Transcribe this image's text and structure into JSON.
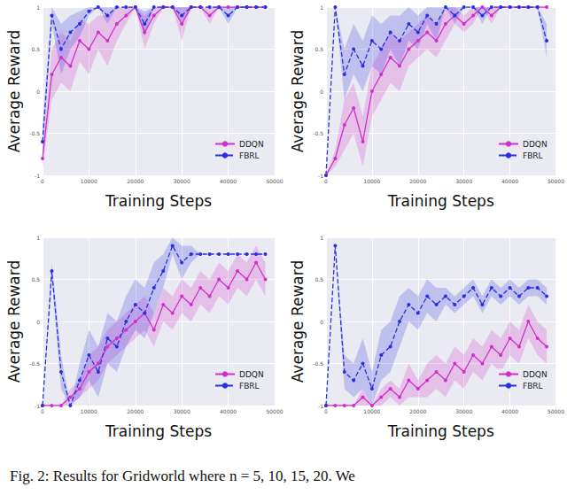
{
  "caption": "Fig. 2: Results for Gridworld where n = 5, 10, 15, 20. We",
  "chart_data": [
    {
      "type": "line",
      "x_label": "Training Steps",
      "y_label": "Average Reward",
      "x": [
        0,
        2000,
        4000,
        6000,
        8000,
        10000,
        12000,
        14000,
        16000,
        18000,
        20000,
        22000,
        24000,
        26000,
        28000,
        30000,
        32000,
        34000,
        36000,
        38000,
        40000,
        42000,
        44000,
        46000,
        48000
      ],
      "xlim": [
        0,
        50000
      ],
      "xticks": [
        0,
        10000,
        20000,
        30000,
        40000,
        50000
      ],
      "ylim": [
        -1,
        1
      ],
      "yticks": [
        -1,
        -0.5,
        0,
        0.5,
        1
      ],
      "grid": true,
      "legend": "lower right",
      "series": [
        {
          "name": "DDQN",
          "color": "#d12fc9",
          "line_style": "solid",
          "marker": "circle",
          "values": [
            -0.8,
            0.2,
            0.4,
            0.3,
            0.6,
            0.5,
            0.7,
            0.6,
            0.8,
            0.9,
            1,
            0.7,
            0.9,
            1,
            1,
            0.8,
            1,
            1,
            0.9,
            1,
            1,
            1,
            1,
            1,
            1
          ],
          "error": [
            0.1,
            0.3,
            0.3,
            0.3,
            0.25,
            0.3,
            0.2,
            0.3,
            0.2,
            0.1,
            0,
            0.2,
            0.1,
            0,
            0,
            0.2,
            0,
            0,
            0.1,
            0,
            0,
            0,
            0,
            0,
            0
          ]
        },
        {
          "name": "FBRL",
          "color": "#2b2fe0",
          "line_style": "dashed",
          "marker": "circle",
          "values": [
            -0.6,
            0.9,
            0.5,
            0.7,
            0.8,
            0.95,
            1,
            0.9,
            1,
            1,
            1,
            0.8,
            1,
            1,
            1,
            0.9,
            1,
            1,
            1,
            1,
            0.9,
            1,
            1,
            1,
            1
          ],
          "error": [
            0.2,
            0.1,
            0.3,
            0.2,
            0.15,
            0.05,
            0,
            0.1,
            0,
            0,
            0,
            0.15,
            0,
            0,
            0,
            0.1,
            0,
            0,
            0,
            0,
            0.1,
            0,
            0,
            0,
            0
          ]
        }
      ]
    },
    {
      "type": "line",
      "x_label": "Training Steps",
      "y_label": "Average Reward",
      "x": [
        0,
        2000,
        4000,
        6000,
        8000,
        10000,
        12000,
        14000,
        16000,
        18000,
        20000,
        22000,
        24000,
        26000,
        28000,
        30000,
        32000,
        34000,
        36000,
        38000,
        40000,
        42000,
        44000,
        46000,
        48000
      ],
      "xlim": [
        0,
        50000
      ],
      "xticks": [
        0,
        10000,
        20000,
        30000,
        40000,
        50000
      ],
      "ylim": [
        -1,
        1
      ],
      "yticks": [
        -1,
        -0.5,
        0,
        0.5,
        1
      ],
      "grid": true,
      "legend": "lower right",
      "series": [
        {
          "name": "DDQN",
          "color": "#d12fc9",
          "line_style": "solid",
          "marker": "circle",
          "values": [
            -1,
            -0.8,
            -0.4,
            -0.2,
            -0.6,
            0,
            0.2,
            0.4,
            0.3,
            0.5,
            0.6,
            0.7,
            0.6,
            0.8,
            0.9,
            0.8,
            0.9,
            1,
            0.9,
            1,
            1,
            1,
            1,
            1,
            1
          ],
          "error": [
            0,
            0.1,
            0.3,
            0.3,
            0.3,
            0.3,
            0.3,
            0.3,
            0.3,
            0.2,
            0.2,
            0.2,
            0.2,
            0.2,
            0.1,
            0.1,
            0.1,
            0,
            0.1,
            0,
            0,
            0,
            0,
            0,
            0
          ]
        },
        {
          "name": "FBRL",
          "color": "#2b2fe0",
          "line_style": "dashed",
          "marker": "circle",
          "values": [
            -1,
            1,
            0.2,
            0.5,
            0.3,
            0.6,
            0.5,
            0.7,
            0.6,
            0.8,
            0.7,
            0.9,
            0.8,
            1,
            0.9,
            1,
            1,
            0.9,
            1,
            1,
            1,
            1,
            1,
            1,
            0.6
          ],
          "error": [
            0,
            0,
            0.3,
            0.3,
            0.3,
            0.3,
            0.3,
            0.2,
            0.3,
            0.2,
            0.2,
            0.1,
            0.2,
            0,
            0.1,
            0,
            0,
            0.1,
            0,
            0,
            0,
            0,
            0,
            0,
            0.2
          ]
        }
      ]
    },
    {
      "type": "line",
      "x_label": "Training Steps",
      "y_label": "Average Reward",
      "x": [
        0,
        2000,
        4000,
        6000,
        8000,
        10000,
        12000,
        14000,
        16000,
        18000,
        20000,
        22000,
        24000,
        26000,
        28000,
        30000,
        32000,
        34000,
        36000,
        38000,
        40000,
        42000,
        44000,
        46000,
        48000
      ],
      "xlim": [
        0,
        50000
      ],
      "xticks": [
        0,
        10000,
        20000,
        30000,
        40000,
        50000
      ],
      "ylim": [
        -1,
        1
      ],
      "yticks": [
        -1,
        -0.5,
        0,
        0.5,
        1
      ],
      "grid": true,
      "legend": "lower right",
      "series": [
        {
          "name": "DDQN",
          "color": "#d12fc9",
          "line_style": "solid",
          "marker": "circle",
          "values": [
            -1,
            -1,
            -1,
            -0.9,
            -0.8,
            -0.6,
            -0.5,
            -0.3,
            -0.2,
            -0.1,
            0,
            0.1,
            -0.1,
            0.2,
            0.1,
            0.3,
            0.2,
            0.4,
            0.3,
            0.5,
            0.4,
            0.6,
            0.5,
            0.7,
            0.5
          ],
          "error": [
            0,
            0,
            0,
            0.1,
            0.1,
            0.2,
            0.2,
            0.2,
            0.2,
            0.2,
            0.2,
            0.2,
            0.2,
            0.2,
            0.2,
            0.2,
            0.2,
            0.2,
            0.2,
            0.2,
            0.2,
            0.2,
            0.2,
            0.2,
            0.2
          ]
        },
        {
          "name": "FBRL",
          "color": "#2b2fe0",
          "line_style": "dashed",
          "marker": "circle",
          "values": [
            -1,
            0.6,
            -0.6,
            -1,
            -0.7,
            -0.4,
            -0.6,
            -0.2,
            -0.3,
            0,
            0.2,
            0.1,
            0.4,
            0.6,
            0.9,
            0.7,
            0.8,
            0.8,
            0.8,
            0.8,
            0.8,
            0.8,
            0.8,
            0.8,
            0.8
          ],
          "error": [
            0,
            0.1,
            0.2,
            0,
            0.2,
            0.3,
            0.3,
            0.3,
            0.3,
            0.3,
            0.3,
            0.3,
            0.3,
            0.2,
            0.1,
            0.2,
            0.1,
            0,
            0,
            0,
            0,
            0,
            0,
            0,
            0
          ]
        }
      ]
    },
    {
      "type": "line",
      "x_label": "Training Steps",
      "y_label": "Average Reward",
      "x": [
        0,
        2000,
        4000,
        6000,
        8000,
        10000,
        12000,
        14000,
        16000,
        18000,
        20000,
        22000,
        24000,
        26000,
        28000,
        30000,
        32000,
        34000,
        36000,
        38000,
        40000,
        42000,
        44000,
        46000,
        48000
      ],
      "xlim": [
        0,
        50000
      ],
      "xticks": [
        0,
        10000,
        20000,
        30000,
        40000,
        50000
      ],
      "ylim": [
        -1,
        1
      ],
      "yticks": [
        -1,
        -0.5,
        0,
        0.5,
        1
      ],
      "grid": true,
      "legend": "lower right",
      "series": [
        {
          "name": "DDQN",
          "color": "#d12fc9",
          "line_style": "solid",
          "marker": "circle",
          "values": [
            -1,
            -1,
            -1,
            -1,
            -0.9,
            -1,
            -0.9,
            -0.8,
            -0.9,
            -0.7,
            -0.8,
            -0.7,
            -0.6,
            -0.7,
            -0.5,
            -0.6,
            -0.4,
            -0.5,
            -0.3,
            -0.4,
            -0.2,
            -0.3,
            0,
            -0.2,
            -0.3
          ],
          "error": [
            0,
            0,
            0,
            0,
            0.1,
            0,
            0.1,
            0.1,
            0.1,
            0.2,
            0.1,
            0.2,
            0.2,
            0.2,
            0.2,
            0.2,
            0.2,
            0.2,
            0.2,
            0.2,
            0.2,
            0.2,
            0.2,
            0.2,
            0.2
          ]
        },
        {
          "name": "FBRL",
          "color": "#2b2fe0",
          "line_style": "dashed",
          "marker": "circle",
          "values": [
            -1,
            0.9,
            -0.6,
            -0.7,
            -0.5,
            -0.8,
            -0.4,
            -0.3,
            0,
            0.2,
            0.1,
            0.3,
            0.2,
            0.3,
            0.2,
            0.3,
            0.4,
            0.2,
            0.4,
            0.3,
            0.4,
            0.3,
            0.4,
            0.4,
            0.3
          ],
          "error": [
            0,
            0,
            0.2,
            0.2,
            0.3,
            0.2,
            0.3,
            0.3,
            0.3,
            0.2,
            0.2,
            0.2,
            0.2,
            0.1,
            0.1,
            0.1,
            0.1,
            0.1,
            0.1,
            0.1,
            0.1,
            0.1,
            0.1,
            0.1,
            0.1
          ]
        }
      ]
    }
  ]
}
